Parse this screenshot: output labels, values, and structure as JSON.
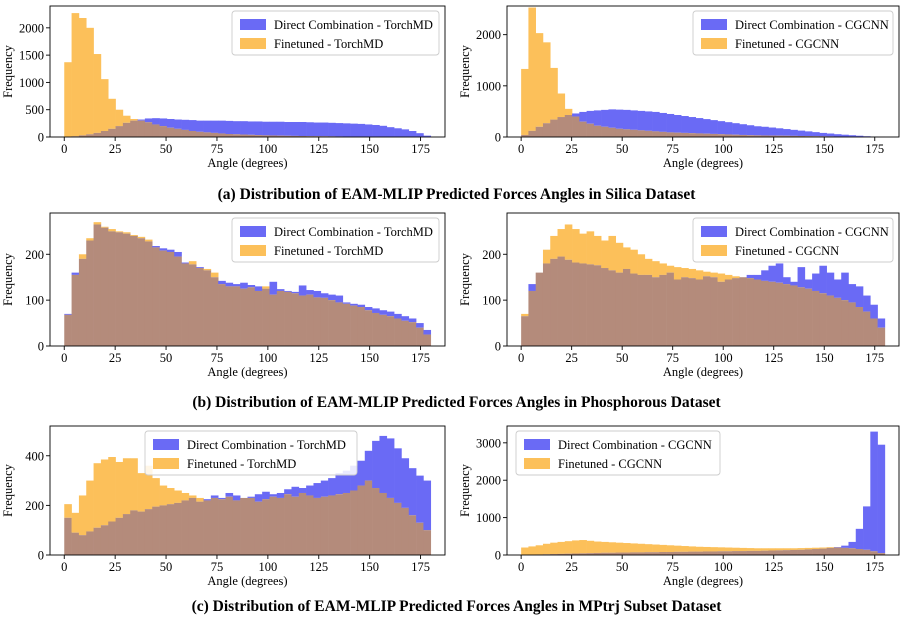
{
  "colors": {
    "direct": "#6a6af5",
    "finetuned": "#fcc05a",
    "overlap": "#b48b7b",
    "axis": "#000000",
    "legend_border": "#cccccc"
  },
  "captions": {
    "a": "(a) Distribution of EAM-MLIP Predicted Forces Angles in Silica Dataset",
    "b": "(b) Distribution of EAM-MLIP Predicted Forces Angles in Phosphorous Dataset",
    "c": "(c) Distribution of EAM-MLIP Predicted Forces Angles in MPtrj Subset Dataset"
  },
  "chart_data": [
    {
      "id": "a-left",
      "type": "histogram",
      "title": "",
      "xlabel": "Angle (degrees)",
      "ylabel": "Frequency",
      "xlim": [
        -7,
        187
      ],
      "ylim": [
        0,
        2400
      ],
      "xticks": [
        0,
        25,
        50,
        75,
        100,
        125,
        150,
        175
      ],
      "yticks": [
        0,
        500,
        1000,
        1500,
        2000
      ],
      "bin_start": 0,
      "bin_width": 3.6,
      "legend_position": "top-right",
      "series": [
        {
          "name": "Direct Combination - TorchMD",
          "values": [
            3,
            14,
            30,
            50,
            75,
            110,
            150,
            200,
            260,
            300,
            320,
            340,
            345,
            340,
            330,
            320,
            315,
            310,
            300,
            300,
            300,
            300,
            295,
            290,
            290,
            285,
            285,
            280,
            280,
            280,
            275,
            275,
            275,
            270,
            265,
            265,
            260,
            255,
            250,
            245,
            240,
            230,
            220,
            205,
            180,
            160,
            140,
            110,
            70,
            25
          ]
        },
        {
          "name": "Finetuned - TorchMD",
          "values": [
            1370,
            2270,
            2180,
            2000,
            1520,
            1060,
            700,
            500,
            390,
            330,
            300,
            270,
            230,
            200,
            170,
            150,
            130,
            110,
            95,
            85,
            75,
            65,
            55,
            50,
            45,
            40,
            35,
            30,
            28,
            25,
            22,
            20,
            18,
            16,
            15,
            14,
            12,
            10,
            9,
            8,
            7,
            6,
            5,
            4,
            3,
            3,
            2,
            2,
            1,
            1
          ]
        }
      ]
    },
    {
      "id": "a-right",
      "type": "histogram",
      "title": "",
      "xlabel": "Angle (degrees)",
      "ylabel": "Frequency",
      "xlim": [
        -7,
        187
      ],
      "ylim": [
        0,
        2560
      ],
      "xticks": [
        0,
        25,
        50,
        75,
        100,
        125,
        150,
        175
      ],
      "yticks": [
        0,
        1000,
        2000
      ],
      "bin_start": 0,
      "bin_width": 3.6,
      "legend_position": "top-right",
      "series": [
        {
          "name": "Direct Combination - CGCNN",
          "values": [
            40,
            120,
            200,
            270,
            340,
            390,
            430,
            460,
            490,
            510,
            520,
            530,
            540,
            535,
            530,
            520,
            510,
            500,
            490,
            470,
            450,
            430,
            410,
            390,
            370,
            350,
            330,
            310,
            290,
            270,
            250,
            230,
            210,
            200,
            185,
            170,
            155,
            140,
            125,
            110,
            95,
            80,
            68,
            55,
            45,
            35,
            25,
            15,
            8,
            3
          ]
        },
        {
          "name": "Finetuned - CGCNN",
          "values": [
            1330,
            2530,
            2030,
            1850,
            1350,
            850,
            550,
            400,
            300,
            260,
            220,
            200,
            180,
            160,
            150,
            140,
            130,
            120,
            110,
            100,
            90,
            85,
            80,
            75,
            70,
            65,
            60,
            55,
            50,
            45,
            40,
            35,
            32,
            30,
            28,
            26,
            24,
            22,
            20,
            18,
            16,
            14,
            12,
            10,
            8,
            6,
            5,
            4,
            3,
            2
          ]
        }
      ]
    },
    {
      "id": "b-left",
      "type": "histogram",
      "title": "",
      "xlabel": "Angle (degrees)",
      "ylabel": "Frequency",
      "xlim": [
        -7,
        187
      ],
      "ylim": [
        0,
        290
      ],
      "xticks": [
        0,
        25,
        50,
        75,
        100,
        125,
        150,
        175
      ],
      "yticks": [
        0,
        100,
        200
      ],
      "bin_start": 0,
      "bin_width": 3.6,
      "legend_position": "top-right",
      "series": [
        {
          "name": "Direct Combination - TorchMD",
          "values": [
            70,
            160,
            190,
            230,
            265,
            258,
            250,
            248,
            245,
            240,
            235,
            228,
            218,
            213,
            210,
            205,
            182,
            178,
            172,
            165,
            150,
            142,
            138,
            135,
            138,
            133,
            130,
            125,
            140,
            124,
            120,
            118,
            132,
            122,
            120,
            115,
            112,
            110,
            95,
            92,
            90,
            85,
            82,
            78,
            75,
            70,
            65,
            60,
            50,
            35
          ]
        },
        {
          "name": "Finetuned - TorchMD",
          "values": [
            68,
            155,
            200,
            235,
            270,
            260,
            255,
            250,
            248,
            242,
            238,
            232,
            215,
            208,
            205,
            195,
            180,
            185,
            170,
            168,
            160,
            135,
            130,
            130,
            125,
            128,
            120,
            130,
            112,
            120,
            118,
            115,
            110,
            112,
            106,
            105,
            100,
            95,
            92,
            88,
            85,
            78,
            72,
            68,
            65,
            60,
            55,
            52,
            40,
            25
          ]
        }
      ]
    },
    {
      "id": "b-right",
      "type": "histogram",
      "title": "",
      "xlabel": "Angle (degrees)",
      "ylabel": "Frequency",
      "xlim": [
        -7,
        187
      ],
      "ylim": [
        0,
        290
      ],
      "xticks": [
        0,
        25,
        50,
        75,
        100,
        125,
        150,
        175
      ],
      "yticks": [
        0,
        100,
        200
      ],
      "bin_start": 0,
      "bin_width": 3.6,
      "legend_position": "top-right",
      "series": [
        {
          "name": "Direct Combination - CGCNN",
          "values": [
            65,
            135,
            160,
            180,
            190,
            195,
            188,
            182,
            180,
            178,
            176,
            170,
            165,
            160,
            168,
            158,
            155,
            155,
            150,
            155,
            160,
            145,
            150,
            148,
            145,
            152,
            150,
            140,
            145,
            148,
            150,
            155,
            155,
            165,
            175,
            180,
            150,
            140,
            172,
            145,
            158,
            175,
            160,
            145,
            160,
            135,
            130,
            110,
            90,
            60
          ]
        },
        {
          "name": "Finetuned - CGCNN",
          "values": [
            70,
            120,
            160,
            210,
            240,
            255,
            265,
            255,
            245,
            250,
            240,
            230,
            240,
            225,
            215,
            210,
            200,
            190,
            185,
            180,
            175,
            172,
            170,
            168,
            165,
            162,
            160,
            158,
            155,
            152,
            150,
            148,
            145,
            142,
            140,
            138,
            135,
            132,
            128,
            125,
            120,
            115,
            110,
            105,
            100,
            95,
            85,
            75,
            60,
            40
          ]
        }
      ]
    },
    {
      "id": "c-left",
      "type": "histogram",
      "title": "",
      "xlabel": "Angle (degrees)",
      "ylabel": "Frequency",
      "xlim": [
        -7,
        187
      ],
      "ylim": [
        0,
        520
      ],
      "xticks": [
        0,
        25,
        50,
        75,
        100,
        125,
        150,
        175
      ],
      "yticks": [
        0,
        200,
        400
      ],
      "bin_start": 0,
      "bin_width": 3.6,
      "legend_position": "top-center",
      "series": [
        {
          "name": "Direct Combination - TorchMD",
          "values": [
            150,
            90,
            80,
            95,
            110,
            120,
            135,
            150,
            165,
            180,
            175,
            185,
            195,
            200,
            205,
            210,
            220,
            230,
            215,
            225,
            240,
            230,
            250,
            240,
            230,
            235,
            245,
            255,
            245,
            250,
            265,
            275,
            270,
            280,
            290,
            300,
            310,
            330,
            340,
            360,
            380,
            420,
            460,
            480,
            470,
            430,
            390,
            350,
            320,
            300
          ]
        },
        {
          "name": "Finetuned - TorchMD",
          "values": [
            205,
            170,
            240,
            300,
            370,
            385,
            395,
            375,
            390,
            390,
            330,
            360,
            310,
            280,
            270,
            260,
            250,
            240,
            230,
            220,
            230,
            225,
            235,
            220,
            230,
            230,
            215,
            225,
            235,
            230,
            245,
            235,
            250,
            240,
            230,
            235,
            240,
            245,
            250,
            260,
            280,
            300,
            270,
            250,
            230,
            210,
            190,
            160,
            130,
            100
          ]
        }
      ]
    },
    {
      "id": "c-right",
      "type": "histogram",
      "title": "",
      "xlabel": "Angle (degrees)",
      "ylabel": "Frequency",
      "xlim": [
        -7,
        187
      ],
      "ylim": [
        0,
        3450
      ],
      "xticks": [
        0,
        25,
        50,
        75,
        100,
        125,
        150,
        175
      ],
      "yticks": [
        0,
        1000,
        2000,
        3000
      ],
      "bin_start": 0,
      "bin_width": 3.6,
      "legend_position": "top-left",
      "series": [
        {
          "name": "Direct Combination - CGCNN",
          "values": [
            5,
            10,
            15,
            20,
            25,
            30,
            35,
            40,
            45,
            50,
            55,
            60,
            60,
            65,
            65,
            70,
            70,
            75,
            75,
            80,
            80,
            85,
            85,
            90,
            90,
            95,
            95,
            100,
            100,
            105,
            105,
            110,
            110,
            115,
            120,
            125,
            130,
            135,
            140,
            150,
            160,
            170,
            190,
            210,
            250,
            350,
            700,
            1300,
            3300,
            2950
          ]
        },
        {
          "name": "Finetuned - CGCNN",
          "values": [
            200,
            230,
            260,
            300,
            330,
            350,
            370,
            390,
            400,
            380,
            360,
            350,
            340,
            330,
            320,
            310,
            300,
            290,
            280,
            270,
            260,
            250,
            240,
            230,
            220,
            215,
            210,
            205,
            200,
            195,
            190,
            185,
            180,
            180,
            180,
            180,
            180,
            180,
            185,
            190,
            195,
            200,
            210,
            200,
            190,
            180,
            160,
            140,
            100,
            50
          ]
        }
      ]
    }
  ]
}
